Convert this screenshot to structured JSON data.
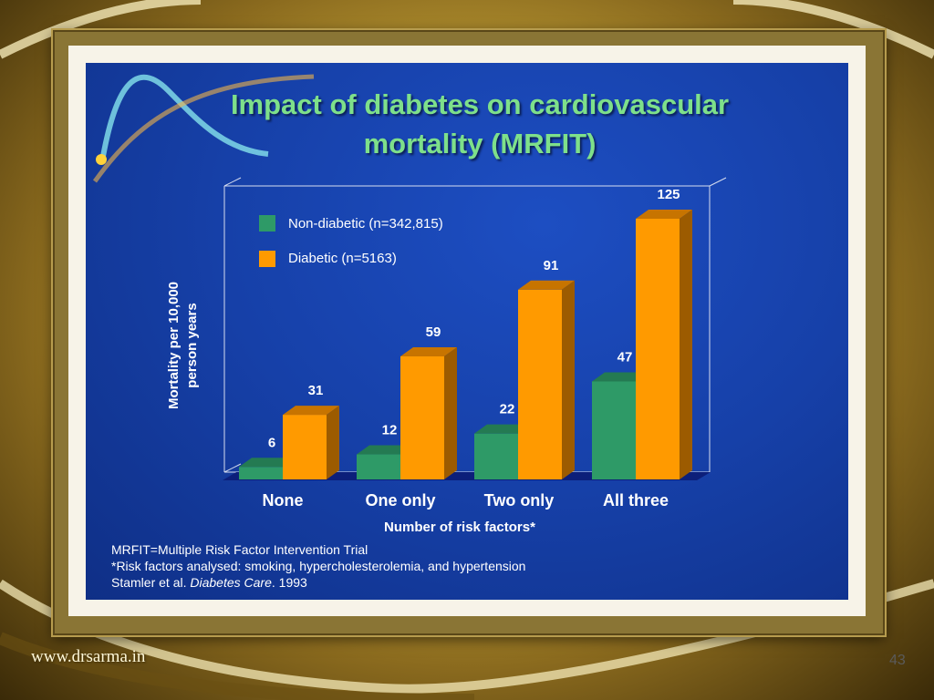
{
  "slide": {
    "title_line1": "Impact of diabetes on cardiovascular",
    "title_line2": "mortality (MRFIT)",
    "footnote_line1": "MRFIT=Multiple Risk Factor Intervention Trial",
    "footnote_line2": "*Risk factors analysed: smoking, hypercholesterolemia, and hypertension",
    "footnote_line3_prefix": "Stamler et al. ",
    "footnote_line3_journal": "Diabetes Care",
    "footnote_line3_suffix": ". 1993"
  },
  "footer": {
    "website": "www.drsarma.in",
    "page_number": "43"
  },
  "colors": {
    "non_diabetic": "#2e9a67",
    "diabetic": "#ff9a00",
    "slide_bg": "#1640a8",
    "title": "#7ee08a"
  },
  "chart_data": {
    "type": "bar",
    "title": "",
    "xlabel": "Number of risk factors*",
    "ylabel_line1": "Mortality per 10,000",
    "ylabel_line2": "person years",
    "categories": [
      "None",
      "One only",
      "Two only",
      "All three"
    ],
    "series": [
      {
        "name": "Non-diabetic (n=342,815)",
        "values": [
          6,
          12,
          22,
          47
        ]
      },
      {
        "name": "Diabetic (n=5163)",
        "values": [
          31,
          59,
          91,
          125
        ]
      }
    ],
    "ylim": [
      0,
      125
    ],
    "legend_position": "top-left",
    "grid": false,
    "data_labels": true
  }
}
